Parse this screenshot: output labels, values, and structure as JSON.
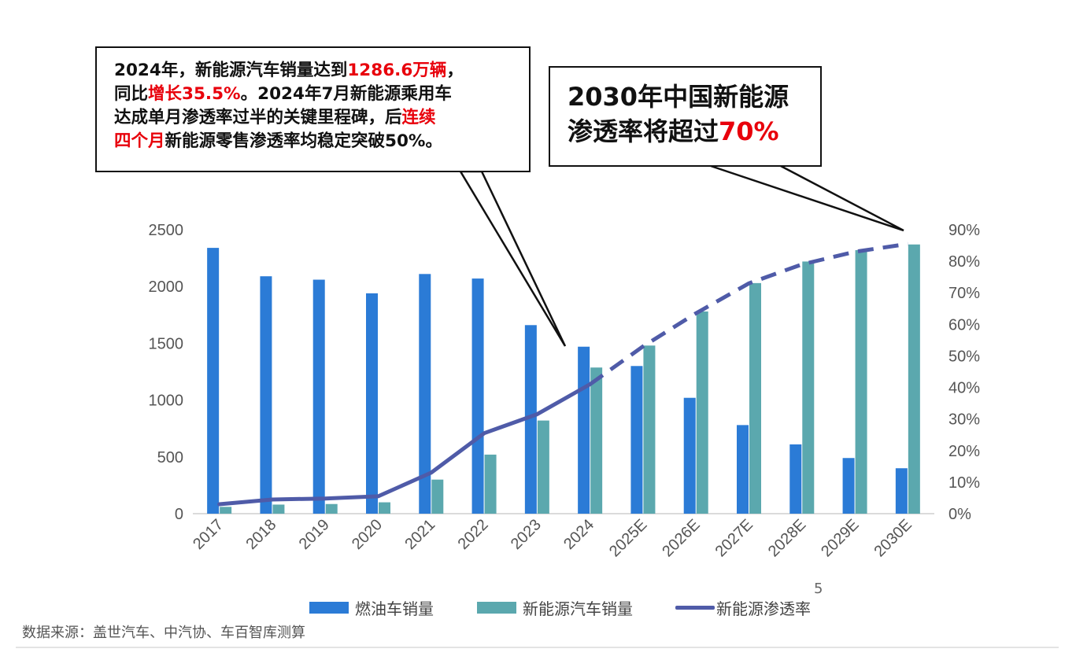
{
  "callout_left": {
    "line1_a": "2024年，新能源汽车销量达到",
    "line1_hl": "1286.6万辆",
    "line1_b": "，",
    "line2_a": "同比",
    "line2_hl": "增长35.5%",
    "line2_b": "。2024年7月新能源乘用车",
    "line3_a": "达成单月渗透率过半的关键里程碑，后",
    "line3_hl": "连续",
    "line4_hl": "四个月",
    "line4_b": "新能源零售渗透率均稳定突破50%。"
  },
  "callout_right": {
    "line1": "2030年中国新能源",
    "line2_a": "渗透率将超过",
    "line2_hl": "70%"
  },
  "page_number": "5",
  "source_note": "数据来源：盖世汽车、中汽协、车百智库测算",
  "colors": {
    "ice": "#2b7bd6",
    "nev": "#5ba8ae",
    "rate": "#4f5ba8",
    "highlight": "#e8000b"
  },
  "chart_data": {
    "type": "bar",
    "categories": [
      "2017",
      "2018",
      "2019",
      "2020",
      "2021",
      "2022",
      "2023",
      "2024",
      "2025E",
      "2026E",
      "2027E",
      "2028E",
      "2029E",
      "2030E"
    ],
    "series": [
      {
        "name": "燃油车销量",
        "type": "bar",
        "axis": "left",
        "values": [
          2340,
          2090,
          2060,
          1940,
          2110,
          2070,
          1660,
          1470,
          1300,
          1020,
          780,
          610,
          490,
          400
        ]
      },
      {
        "name": "新能源汽车销量",
        "type": "bar",
        "axis": "left",
        "values": [
          60,
          80,
          85,
          100,
          300,
          520,
          820,
          1286.6,
          1480,
          1780,
          2030,
          2220,
          2320,
          2370
        ]
      },
      {
        "name": "新能源渗透率",
        "type": "line",
        "axis": "right",
        "values": [
          0.03,
          0.045,
          0.048,
          0.055,
          0.13,
          0.255,
          0.315,
          0.41,
          0.53,
          0.635,
          0.73,
          0.79,
          0.83,
          0.855
        ],
        "projected_from_index": 7
      }
    ],
    "y_left": {
      "min": 0,
      "max": 2500,
      "ticks": [
        0,
        500,
        1000,
        1500,
        2000,
        2500
      ]
    },
    "y_right": {
      "min": 0,
      "max": 0.9,
      "ticks": [
        "0%",
        "10%",
        "20%",
        "30%",
        "40%",
        "50%",
        "60%",
        "70%",
        "80%",
        "90%"
      ]
    },
    "grid": false,
    "legend_position": "bottom"
  }
}
